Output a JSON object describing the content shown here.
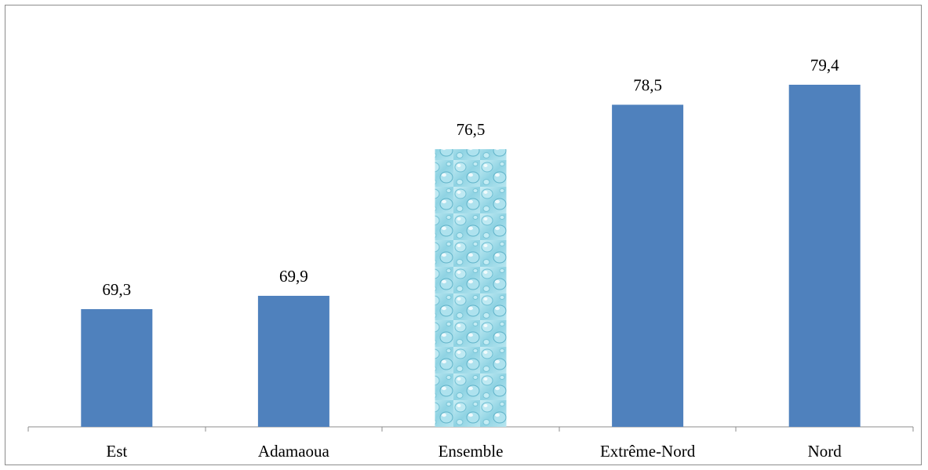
{
  "chart_data": {
    "type": "bar",
    "title": "",
    "xlabel": "",
    "ylabel": "",
    "categories": [
      "Est",
      "Adamaoua",
      "Ensemble",
      "Extrême-Nord",
      "Nord"
    ],
    "values": [
      69.3,
      69.9,
      76.5,
      78.5,
      79.4
    ],
    "value_labels": [
      "69,3",
      "69,9",
      "76,5",
      "78,5",
      "79,4"
    ],
    "highlighted_category": "Ensemble",
    "grid": false,
    "legend": "none",
    "colors": {
      "bar": "#4f81bd",
      "highlight_bar": "#9fd6e6",
      "axis": "#8c8c8c",
      "frame": "#8c8c8c"
    }
  }
}
